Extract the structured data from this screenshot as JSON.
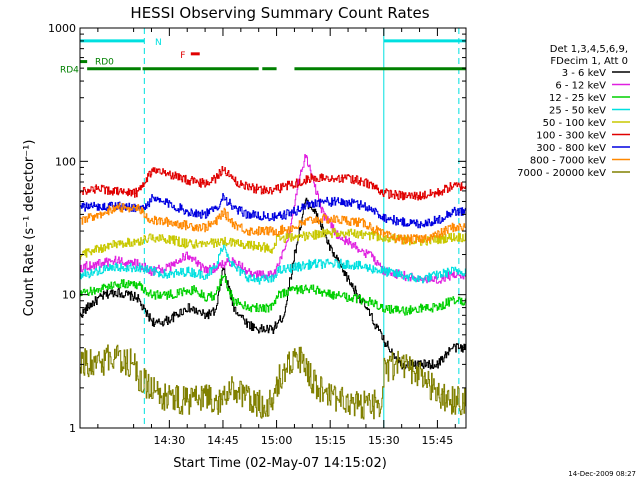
{
  "chart_data": {
    "type": "line",
    "title": "HESSI Observing Summary Count Rates",
    "xlabel": "Start Time (02-May-07 14:15:02)",
    "ylabel": "Count Rate (s⁻¹ detector⁻¹)",
    "y_scale": "log",
    "ylim": [
      1,
      1000
    ],
    "xlim_minutes": [
      -10,
      98
    ],
    "x_ticks": [
      {
        "label": "14:30",
        "minutes": 15
      },
      {
        "label": "14:45",
        "minutes": 30
      },
      {
        "label": "15:00",
        "minutes": 45
      },
      {
        "label": "15:15",
        "minutes": 60
      },
      {
        "label": "15:30",
        "minutes": 75
      },
      {
        "label": "15:45",
        "minutes": 90
      }
    ],
    "y_ticks": [
      {
        "label": "1",
        "value": 1
      },
      {
        "label": "10",
        "value": 10
      },
      {
        "label": "100",
        "value": 100
      },
      {
        "label": "1000",
        "value": 1000
      }
    ],
    "legend_header": [
      "Det 1,3,4,5,6,9,",
      "FDecim 1, Att 0"
    ],
    "legend_placement": "right",
    "series": [
      {
        "name": "3 - 6 keV",
        "color": "#000000",
        "x": [
          -10,
          -7,
          -3,
          0,
          6,
          8,
          11,
          15,
          20,
          25,
          28,
          30,
          33,
          37,
          40,
          44,
          45,
          47,
          50,
          53,
          55,
          57,
          60,
          65,
          70,
          75,
          80,
          85,
          90,
          94
        ],
        "y": [
          7,
          8.5,
          10,
          10.5,
          9.5,
          7.5,
          6,
          6.5,
          8,
          7,
          7.5,
          16,
          8,
          6,
          5.5,
          5.5,
          6,
          7,
          20,
          50,
          45,
          35,
          22,
          13,
          8,
          4.5,
          3,
          3,
          3,
          4
        ]
      },
      {
        "name": "6 - 12 keV",
        "color": "#e020e0",
        "x": [
          -10,
          -5,
          0,
          6,
          10,
          15,
          20,
          25,
          30,
          33,
          38,
          44,
          45,
          48,
          51,
          53,
          55,
          58,
          62,
          68,
          72,
          75,
          80,
          85,
          90,
          94
        ],
        "y": [
          16,
          17,
          18,
          17,
          15,
          16,
          20,
          15,
          17,
          18,
          14,
          14,
          16,
          24,
          70,
          110,
          75,
          40,
          28,
          22,
          19,
          15,
          14,
          13,
          13,
          14
        ]
      },
      {
        "name": "12 - 25 keV",
        "color": "#00d000",
        "x": [
          -10,
          -5,
          0,
          6,
          10,
          15,
          20,
          22,
          25,
          28,
          30,
          33,
          38,
          44,
          45,
          50,
          55,
          60,
          65,
          70,
          75,
          80,
          85,
          90,
          94
        ],
        "y": [
          10,
          11,
          12,
          12,
          10,
          10,
          10.5,
          11,
          9.5,
          10,
          14,
          9,
          8,
          8,
          10,
          11,
          11,
          10,
          9.5,
          9,
          8,
          7.5,
          8,
          8,
          9
        ]
      },
      {
        "name": "25 - 50 keV",
        "color": "#00e0e0",
        "x": [
          -10,
          -5,
          0,
          6,
          10,
          15,
          20,
          25,
          28,
          30,
          33,
          38,
          44,
          45,
          50,
          55,
          60,
          65,
          70,
          75,
          80,
          85,
          90,
          94
        ],
        "y": [
          14,
          15,
          16,
          16,
          15,
          14,
          15,
          14,
          16,
          24,
          16,
          13,
          13,
          15,
          16,
          17,
          17,
          17,
          16,
          15,
          14,
          13,
          14,
          15
        ]
      },
      {
        "name": "50 - 100 keV",
        "color": "#c8c800",
        "x": [
          -10,
          -5,
          0,
          6,
          10,
          15,
          20,
          25,
          30,
          35,
          40,
          44,
          45,
          50,
          55,
          60,
          65,
          70,
          75,
          80,
          85,
          90,
          94
        ],
        "y": [
          20,
          22,
          24,
          25,
          27,
          26,
          24,
          24,
          25,
          24,
          23,
          22,
          26,
          27,
          28,
          29,
          29,
          28,
          27,
          26,
          25,
          26,
          27
        ]
      },
      {
        "name": "100 - 300 keV",
        "color": "#e00000",
        "x": [
          -10,
          -5,
          0,
          6,
          8,
          10,
          15,
          20,
          25,
          28,
          30,
          33,
          37,
          40,
          44,
          45,
          50,
          54,
          58,
          65,
          70,
          75,
          80,
          85,
          90,
          94
        ],
        "y": [
          60,
          62,
          60,
          58,
          70,
          85,
          80,
          72,
          68,
          75,
          88,
          72,
          64,
          62,
          60,
          62,
          68,
          75,
          75,
          74,
          70,
          58,
          55,
          55,
          58,
          65
        ]
      },
      {
        "name": "300 - 800 keV",
        "color": "#0000e0",
        "x": [
          -10,
          -5,
          0,
          6,
          8,
          10,
          15,
          20,
          25,
          28,
          30,
          33,
          37,
          40,
          44,
          45,
          50,
          54,
          58,
          65,
          70,
          75,
          80,
          85,
          90,
          94
        ],
        "y": [
          45,
          46,
          46,
          45,
          45,
          52,
          48,
          42,
          40,
          44,
          55,
          44,
          40,
          39,
          38,
          38,
          42,
          48,
          50,
          49,
          46,
          38,
          35,
          34,
          36,
          42
        ]
      },
      {
        "name": "800 - 7000 keV",
        "color": "#ff8800",
        "x": [
          -10,
          -5,
          0,
          6,
          8,
          10,
          15,
          20,
          25,
          28,
          30,
          33,
          37,
          40,
          44,
          45,
          50,
          54,
          58,
          65,
          70,
          75,
          80,
          85,
          90,
          94
        ],
        "y": [
          35,
          40,
          45,
          45,
          40,
          36,
          35,
          33,
          32,
          35,
          42,
          34,
          30,
          30,
          30,
          30,
          32,
          36,
          37,
          36,
          34,
          28,
          26,
          26,
          28,
          32
        ]
      },
      {
        "name": "7000 - 20000 keV",
        "color": "#808000",
        "x": [
          -10,
          -5,
          0,
          5,
          6,
          8,
          12,
          18,
          25,
          30,
          33,
          36,
          40,
          44,
          45,
          48,
          50,
          53,
          55,
          58,
          62,
          66,
          70,
          74,
          75,
          80,
          85,
          90,
          94
        ],
        "y": [
          3.2,
          3,
          3.5,
          3,
          2.5,
          2.2,
          1.8,
          1.6,
          1.7,
          1.6,
          2,
          1.7,
          1.5,
          1.5,
          2.2,
          2.8,
          3.4,
          3,
          2.2,
          1.8,
          1.6,
          1.5,
          1.5,
          1.5,
          2.8,
          3,
          2.6,
          1.8,
          1.6
        ]
      }
    ],
    "flags": [
      {
        "label": "N",
        "color": "#00e0e0",
        "value": 800,
        "segments": [
          [
            -10,
            8
          ],
          [
            75,
            98
          ]
        ]
      },
      {
        "label": "F",
        "color": "#e00000",
        "value": 640,
        "segments": [
          [
            21,
            23.5
          ]
        ]
      },
      {
        "label": "RD0",
        "color": "#008000",
        "value": 560,
        "segments": [
          [
            -10,
            -8
          ]
        ]
      },
      {
        "label": "RD4",
        "color": "#008000",
        "value": 495,
        "segments": [
          [
            -8,
            7
          ],
          [
            7.5,
            40
          ],
          [
            41,
            45
          ],
          [
            50,
            98
          ]
        ]
      }
    ],
    "vlines_solid": [
      -10,
      75
    ],
    "vlines_dashed": [
      8,
      96
    ],
    "timestamp": "14-Dec-2009 08:27"
  }
}
